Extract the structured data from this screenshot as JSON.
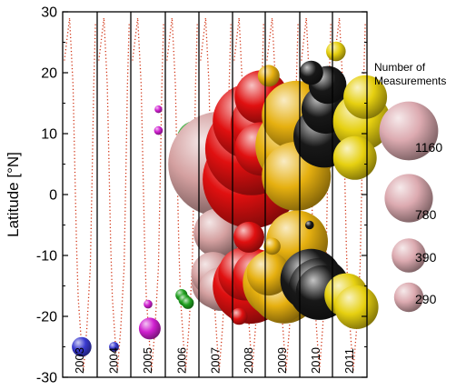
{
  "chart_data": {
    "type": "scatter",
    "ylabel": "Latitude [°N]",
    "ylim": [
      -30,
      30
    ],
    "yticks": [
      -30,
      -20,
      -10,
      0,
      10,
      20,
      30
    ],
    "x_axis": "year panels",
    "categories": [
      "2003",
      "2004",
      "2005",
      "2006",
      "2007",
      "2008",
      "2009",
      "2010",
      "2011"
    ],
    "legend": {
      "title_line1": "Number of",
      "title_line2": "Measurements",
      "placement": "right",
      "sizes": [
        {
          "label": "1160",
          "value": 1160
        },
        {
          "label": "780",
          "value": 780
        },
        {
          "label": "390",
          "value": 390
        },
        {
          "label": "290",
          "value": 290
        }
      ]
    },
    "colors": {
      "2003": "#3a3ad0",
      "2004": "#3a3ad0",
      "2005": "#d020d0",
      "2006": "#20a020",
      "2007": "#d4a0a0",
      "2008": "#e01010",
      "2009": "#e6b010",
      "2010": "#181818",
      "2011": "#e6d010",
      "dotted_track": "#d03010",
      "legend": "#dcaab0"
    },
    "series": [
      {
        "year": "2003",
        "points": [
          {
            "frac": 0.55,
            "lat": -25,
            "n": 40
          }
        ]
      },
      {
        "year": "2004",
        "points": [
          {
            "frac": 0.5,
            "lat": -25,
            "n": 10
          }
        ]
      },
      {
        "year": "2005",
        "points": [
          {
            "frac": 0.55,
            "lat": -22,
            "n": 50
          },
          {
            "frac": 0.5,
            "lat": -18,
            "n": 8
          },
          {
            "frac": 0.8,
            "lat": 10.5,
            "n": 8
          },
          {
            "frac": 0.8,
            "lat": 14,
            "n": 6
          }
        ]
      },
      {
        "year": "2006",
        "points": [
          {
            "frac": 0.9,
            "lat": 9,
            "n": 150
          },
          {
            "frac": 0.88,
            "lat": 4,
            "n": 130
          },
          {
            "frac": 0.48,
            "lat": -16.5,
            "n": 15
          },
          {
            "frac": 0.57,
            "lat": -17.3,
            "n": 15
          },
          {
            "frac": 0.67,
            "lat": -17.8,
            "n": 15
          }
        ]
      },
      {
        "year": "2007",
        "points": [
          {
            "frac": 0.65,
            "lat": 5,
            "n": 1160
          },
          {
            "frac": 0.57,
            "lat": -6.3,
            "n": 250
          },
          {
            "frac": 0.42,
            "lat": -13,
            "n": 200
          },
          {
            "frac": 0.55,
            "lat": -14.5,
            "n": 280
          },
          {
            "frac": 0.65,
            "lat": -15.5,
            "n": 200
          }
        ]
      },
      {
        "year": "2008",
        "points": [
          {
            "frac": 0.58,
            "lat": 2.5,
            "n": 1000
          },
          {
            "frac": 0.58,
            "lat": 7.5,
            "n": 900
          },
          {
            "frac": 0.55,
            "lat": 12,
            "n": 600
          },
          {
            "frac": 0.88,
            "lat": 16,
            "n": 300
          },
          {
            "frac": 0.88,
            "lat": 11.5,
            "n": 400
          },
          {
            "frac": 0.88,
            "lat": 7.5,
            "n": 300
          },
          {
            "frac": 0.5,
            "lat": -7,
            "n": 100
          },
          {
            "frac": 0.38,
            "lat": -13,
            "n": 300
          },
          {
            "frac": 0.55,
            "lat": -15,
            "n": 600
          },
          {
            "frac": 0.82,
            "lat": -13.5,
            "n": 300
          },
          {
            "frac": 0.2,
            "lat": -20,
            "n": 30
          }
        ]
      },
      {
        "year": "2009",
        "points": [
          {
            "frac": 0.1,
            "lat": 19.5,
            "n": 50
          },
          {
            "frac": 0.9,
            "lat": 13,
            "n": 500
          },
          {
            "frac": 0.9,
            "lat": 8,
            "n": 700
          },
          {
            "frac": 0.9,
            "lat": 3,
            "n": 500
          },
          {
            "frac": 0.92,
            "lat": -7.7,
            "n": 400
          },
          {
            "frac": 0.2,
            "lat": -8.5,
            "n": 30
          },
          {
            "frac": 0.1,
            "lat": -13,
            "n": 200
          },
          {
            "frac": 0.35,
            "lat": -14.5,
            "n": 500
          },
          {
            "frac": 0.55,
            "lat": -15.5,
            "n": 500
          },
          {
            "frac": 0.5,
            "lat": -17,
            "n": 250
          }
        ]
      },
      {
        "year": "2010",
        "points": [
          {
            "frac": 0.35,
            "lat": 20,
            "n": 60
          },
          {
            "frac": 0.85,
            "lat": 18,
            "n": 150
          },
          {
            "frac": 0.8,
            "lat": 14,
            "n": 250
          },
          {
            "frac": 0.75,
            "lat": 9.5,
            "n": 400
          },
          {
            "frac": 0.3,
            "lat": -5,
            "n": 8
          },
          {
            "frac": 0.35,
            "lat": -14,
            "n": 400
          },
          {
            "frac": 0.6,
            "lat": -15.5,
            "n": 400
          },
          {
            "frac": 0.7,
            "lat": -16,
            "n": 300
          }
        ]
      },
      {
        "year": "2011",
        "points": [
          {
            "frac": 0.1,
            "lat": 23.5,
            "n": 40
          },
          {
            "frac": 0.95,
            "lat": 16,
            "n": 200
          },
          {
            "frac": 0.85,
            "lat": 12,
            "n": 350
          },
          {
            "frac": 0.65,
            "lat": 6,
            "n": 200
          },
          {
            "frac": 0.4,
            "lat": -16.5,
            "n": 200
          },
          {
            "frac": 0.7,
            "lat": -18.5,
            "n": 200
          }
        ]
      }
    ]
  }
}
